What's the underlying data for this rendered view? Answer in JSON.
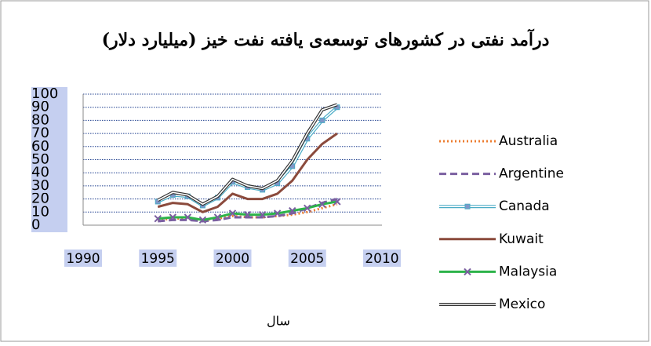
{
  "chart_data": {
    "type": "line",
    "title": "درآمد نفتی در کشورهای توسعه‌ی یافته نفت خیز (میلیارد دلار)",
    "x_label": "سال",
    "x": [
      1995,
      1996,
      1997,
      1998,
      1999,
      2000,
      2001,
      2002,
      2003,
      2004,
      2005,
      2006,
      2007
    ],
    "series": [
      {
        "name": "Australia",
        "color": "#ed7d31",
        "line_style": "dotted",
        "values": [
          4,
          5,
          5,
          4,
          5,
          7,
          6,
          6,
          7,
          8,
          10,
          13,
          16
        ]
      },
      {
        "name": "Argentine",
        "color": "#7a5fa0",
        "line_style": "dashed",
        "values": [
          3,
          4,
          4,
          3,
          4,
          6,
          6,
          6,
          7,
          9,
          13,
          17,
          20
        ]
      },
      {
        "name": "Canada",
        "color": "#4bacc6",
        "line_style": "double",
        "marker": "square",
        "values": [
          18,
          23,
          22,
          15,
          21,
          33,
          29,
          27,
          32,
          45,
          66,
          80,
          90
        ]
      },
      {
        "name": "Kuwait",
        "color": "#8b4a3c",
        "line_style": "solid",
        "values": [
          14,
          17,
          16,
          10,
          14,
          24,
          20,
          20,
          24,
          34,
          50,
          62,
          70
        ]
      },
      {
        "name": "Malaysia",
        "color": "#2db34a",
        "line_style": "solid",
        "marker": "x",
        "values": [
          5,
          6,
          6,
          4,
          6,
          9,
          8,
          8,
          9,
          11,
          13,
          16,
          18
        ]
      },
      {
        "name": "Mexico",
        "color": "#333333",
        "line_style": "double",
        "values": [
          19,
          25,
          23,
          16,
          22,
          35,
          30,
          28,
          34,
          49,
          70,
          88,
          92
        ]
      }
    ],
    "xlim": [
      1990,
      2010
    ],
    "xticks": [
      1990,
      1995,
      2000,
      2005,
      2010
    ],
    "ylim": [
      0,
      100
    ],
    "yticks": [
      0,
      10,
      20,
      30,
      40,
      50,
      60,
      70,
      80,
      90,
      100
    ],
    "grid": true,
    "legend": "right"
  }
}
